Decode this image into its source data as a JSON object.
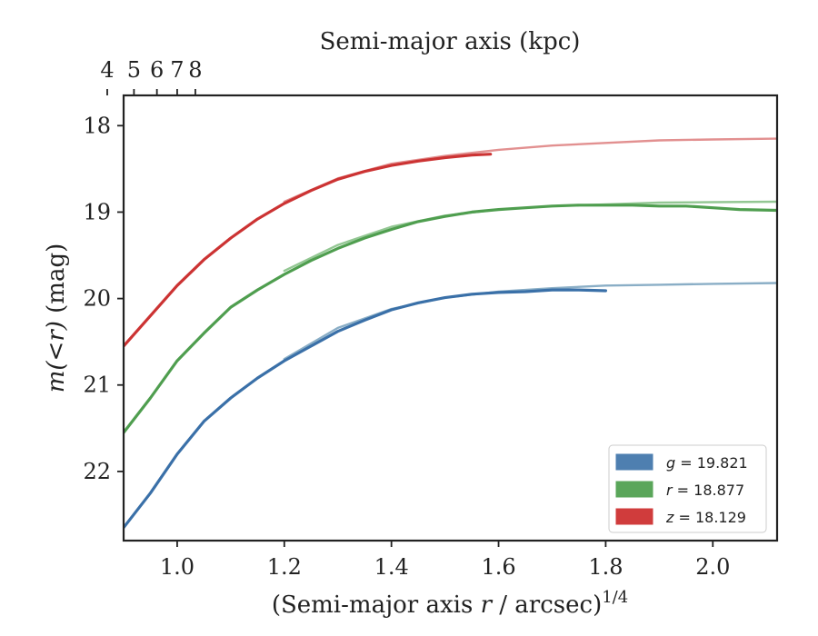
{
  "chart_data": {
    "type": "line",
    "title": "",
    "xlabel": "(Semi-major axis r / arcsec)^1/4",
    "xlabel_parts": {
      "pre": "(Semi-major axis ",
      "var": "r",
      "post": " / arcsec)",
      "sup": "1/4"
    },
    "ylabel": "m(<r) (mag)",
    "ylabel_parts": {
      "math": "m(<r)",
      "unit": " (mag)"
    },
    "top_xlabel": "Semi-major axis (kpc)",
    "xlim": [
      0.9,
      2.12
    ],
    "ylim": [
      22.8,
      17.65
    ],
    "y_inverted": true,
    "x_ticks": [
      1.0,
      1.2,
      1.4,
      1.6,
      1.8,
      2.0
    ],
    "x_tick_labels": [
      "1.0",
      "1.2",
      "1.4",
      "1.6",
      "1.8",
      "2.0"
    ],
    "y_ticks": [
      18,
      19,
      20,
      21,
      22
    ],
    "y_tick_labels": [
      "18",
      "19",
      "20",
      "21",
      "22"
    ],
    "top_x_ticks": [
      4,
      5,
      6,
      7,
      8
    ],
    "top_x_tick_labels": [
      "4",
      "5",
      "6",
      "7",
      "8"
    ],
    "top_axis_kpc_per_arcsec": 7.0,
    "grid": false,
    "legend_position": "bottom-right",
    "legend": [
      {
        "band": "g",
        "value": "19.821",
        "color": "#4e7fb0"
      },
      {
        "band": "r",
        "value": "18.877",
        "color": "#5aa65a"
      },
      {
        "band": "z",
        "value": "18.129",
        "color": "#d03c3c"
      }
    ],
    "series": [
      {
        "name": "g = 19.821",
        "color": "#3a70a8",
        "model_color": "#8aaec6",
        "data_x": [
          0.9,
          0.95,
          1.0,
          1.05,
          1.1,
          1.15,
          1.2,
          1.25,
          1.3,
          1.35,
          1.4,
          1.45,
          1.5,
          1.55,
          1.6,
          1.65,
          1.7,
          1.75,
          1.8
        ],
        "data_y": [
          22.65,
          22.25,
          21.8,
          21.42,
          21.15,
          20.92,
          20.72,
          20.55,
          20.38,
          20.25,
          20.13,
          20.05,
          19.99,
          19.95,
          19.93,
          19.92,
          19.9,
          19.9,
          19.91
        ],
        "model_x": [
          1.2,
          1.3,
          1.4,
          1.5,
          1.6,
          1.7,
          1.8,
          1.9,
          2.0,
          2.12
        ],
        "model_y": [
          20.7,
          20.34,
          20.12,
          19.99,
          19.92,
          19.88,
          19.85,
          19.84,
          19.83,
          19.82
        ]
      },
      {
        "name": "r = 18.877",
        "color": "#4f9e4f",
        "model_color": "#93c793",
        "data_x": [
          0.9,
          0.95,
          1.0,
          1.05,
          1.1,
          1.15,
          1.2,
          1.25,
          1.3,
          1.35,
          1.4,
          1.45,
          1.5,
          1.55,
          1.6,
          1.65,
          1.7,
          1.75,
          1.8,
          1.85,
          1.9,
          1.95,
          2.0,
          2.05,
          2.12
        ],
        "data_y": [
          21.55,
          21.15,
          20.72,
          20.4,
          20.1,
          19.9,
          19.72,
          19.56,
          19.42,
          19.3,
          19.2,
          19.11,
          19.05,
          19.0,
          18.97,
          18.95,
          18.93,
          18.92,
          18.92,
          18.92,
          18.93,
          18.93,
          18.95,
          18.97,
          18.98
        ],
        "model_x": [
          1.2,
          1.3,
          1.4,
          1.5,
          1.6,
          1.7,
          1.8,
          1.9,
          2.0,
          2.12
        ],
        "model_y": [
          19.68,
          19.38,
          19.17,
          19.04,
          18.97,
          18.93,
          18.91,
          18.89,
          18.885,
          18.88
        ]
      },
      {
        "name": "z = 18.129",
        "color": "#cc3333",
        "model_color": "#e29090",
        "data_x": [
          0.9,
          0.95,
          1.0,
          1.05,
          1.1,
          1.15,
          1.2,
          1.25,
          1.3,
          1.35,
          1.4,
          1.45,
          1.5,
          1.55,
          1.585
        ],
        "data_y": [
          20.55,
          20.2,
          19.85,
          19.55,
          19.3,
          19.08,
          18.9,
          18.75,
          18.62,
          18.53,
          18.46,
          18.41,
          18.37,
          18.34,
          18.33
        ],
        "model_x": [
          1.2,
          1.3,
          1.4,
          1.5,
          1.6,
          1.7,
          1.8,
          1.9,
          2.0,
          2.12
        ],
        "model_y": [
          18.88,
          18.61,
          18.44,
          18.35,
          18.28,
          18.23,
          18.2,
          18.17,
          18.16,
          18.15
        ]
      }
    ]
  }
}
